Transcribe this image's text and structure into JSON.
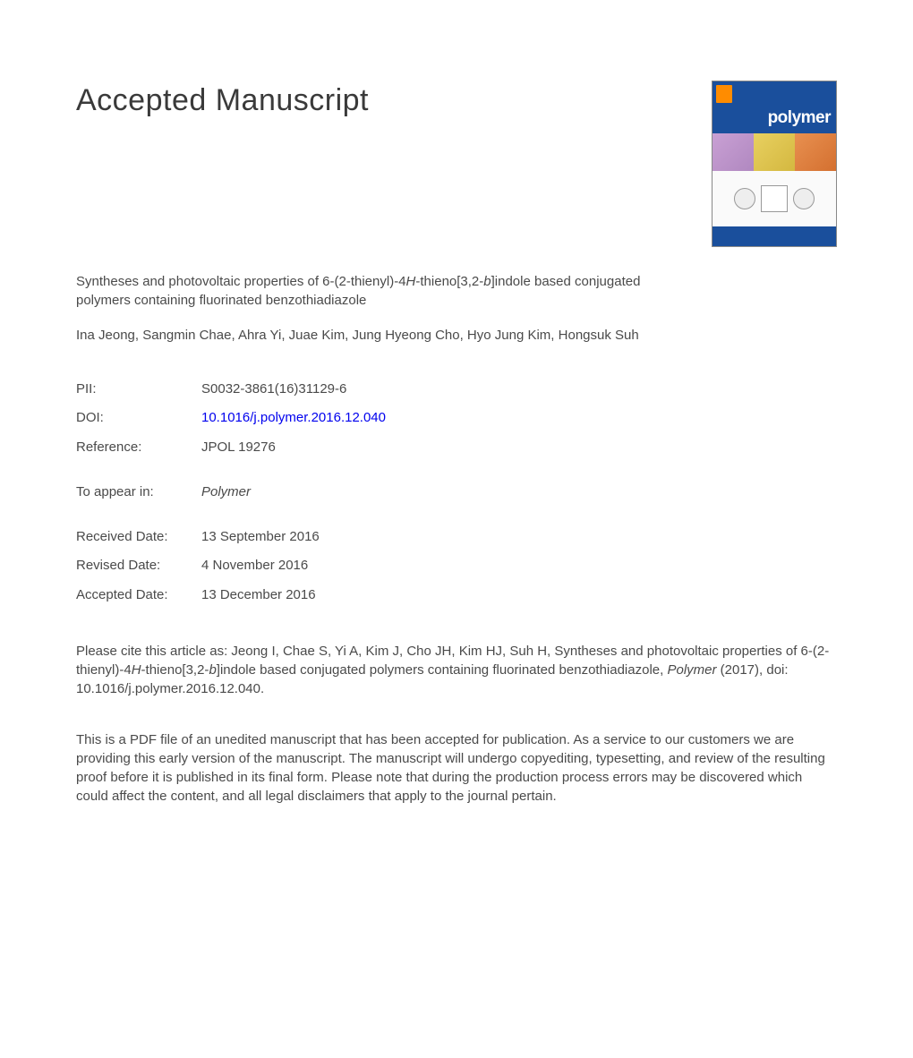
{
  "heading": "Accepted Manuscript",
  "cover": {
    "journal_name": "polymer",
    "header_bg": "#1a4f9c",
    "logo_bg": "#ff8c00",
    "strip_colors": [
      "#c9a0d4",
      "#e8d060",
      "#e89050"
    ]
  },
  "article": {
    "title_pre": "Syntheses and photovoltaic properties of 6-(2-thienyl)-4",
    "title_mid_italic1": "H",
    "title_mid": "-thieno[3,2-",
    "title_mid_italic2": "b",
    "title_post": "]indole based conjugated polymers containing fluorinated benzothiadiazole"
  },
  "authors": "Ina Jeong, Sangmin Chae, Ahra Yi, Juae Kim, Jung Hyeong Cho, Hyo Jung Kim, Hongsuk Suh",
  "meta": {
    "pii_label": "PII:",
    "pii_value": "S0032-3861(16)31129-6",
    "doi_label": "DOI:",
    "doi_value": "10.1016/j.polymer.2016.12.040",
    "ref_label": "Reference:",
    "ref_value": "JPOL 19276",
    "appear_label": "To appear in:",
    "appear_value": "Polymer",
    "received_label": "Received Date:",
    "received_value": "13 September 2016",
    "revised_label": "Revised Date:",
    "revised_value": "4 November 2016",
    "accepted_label": "Accepted Date:",
    "accepted_value": "13 December 2016"
  },
  "citation": {
    "pre": "Please cite this article as: Jeong I, Chae S, Yi A, Kim J, Cho JH, Kim HJ, Suh H, Syntheses and photovoltaic properties of 6-(2-thienyl)-4",
    "italic1": "H",
    "mid1": "-thieno[3,2-",
    "italic2": "b",
    "mid2": "]indole based conjugated polymers containing fluorinated benzothiadiazole, ",
    "journal_italic": "Polymer",
    "post": " (2017), doi: 10.1016/j.polymer.2016.12.040."
  },
  "disclaimer": "This is a PDF file of an unedited manuscript that has been accepted for publication. As a service to our customers we are providing this early version of the manuscript. The manuscript will undergo copyediting, typesetting, and review of the resulting proof before it is published in its final form. Please note that during the production process errors may be discovered which could affect the content, and all legal disclaimers that apply to the journal pertain.",
  "colors": {
    "text": "#4a4a4a",
    "link": "#0000ee",
    "background": "#ffffff"
  },
  "typography": {
    "heading_fontsize": 34,
    "body_fontsize": 15,
    "font_family": "Arial"
  }
}
